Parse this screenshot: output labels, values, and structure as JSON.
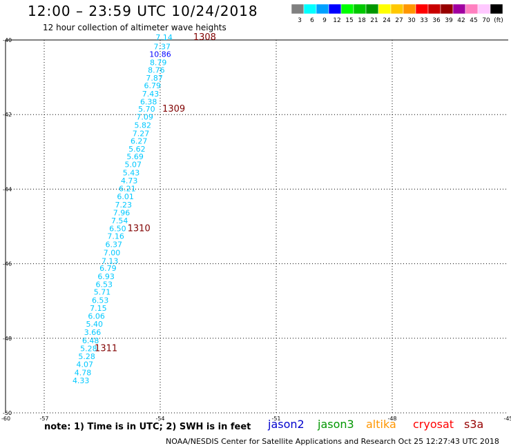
{
  "header": {
    "title": "12:00 – 23:59 UTC 10/24/2018",
    "subtitle": "12 hour collection of altimeter wave heights"
  },
  "colorbar": {
    "colors": [
      "#808080",
      "#00ffff",
      "#00a0ff",
      "#0000ff",
      "#00ff00",
      "#00c800",
      "#009600",
      "#ffff00",
      "#ffc800",
      "#ff9600",
      "#ff0000",
      "#c80000",
      "#960000",
      "#a000a0",
      "#ff80c0",
      "#ffc8ff",
      "#000000"
    ],
    "labels": [
      "3",
      "6",
      "9",
      "12",
      "15",
      "18",
      "21",
      "24",
      "27",
      "30",
      "33",
      "36",
      "39",
      "42",
      "45",
      "70",
      "(ft)"
    ]
  },
  "footer": {
    "note": "note:  1) Time is in UTC;  2) SWH is in feet",
    "missions": [
      {
        "name": "jason2",
        "color": "#0000cc"
      },
      {
        "name": "jason3",
        "color": "#009600"
      },
      {
        "name": "altika",
        "color": "#ff9600"
      },
      {
        "name": "cryosat",
        "color": "#ff0000"
      },
      {
        "name": "s3a",
        "color": "#960000"
      }
    ],
    "credit": "NOAA/NESDIS Center for Satellite Applications and Research     Oct 25 12:27:43 UTC 2018"
  },
  "chart_data": {
    "type": "scatter",
    "xlim": [
      -58,
      -45
    ],
    "ylim": [
      -50,
      -40
    ],
    "x_ticks": [
      -57,
      -54,
      -51,
      -48,
      -45
    ],
    "x_tick_labels": [
      "-57",
      "-54",
      "-51",
      "-48",
      "-45"
    ],
    "y_ticks": [
      -40,
      -42,
      -44,
      -46,
      -48,
      -50
    ],
    "y_tick_labels": [
      "-40",
      "-42",
      "-44",
      "-46",
      "-48",
      "-50"
    ],
    "corner_label": "-60",
    "grid": true,
    "wave_color_default": "#00c8ff",
    "wave_color_high": "#0000ff",
    "points": [
      {
        "lon": -53.9,
        "lat": -39.93,
        "swh": "7.14"
      },
      {
        "lon": -53.95,
        "lat": -40.18,
        "swh": "7.37"
      },
      {
        "lon": -54.0,
        "lat": -40.38,
        "swh": "10.86"
      },
      {
        "lon": -54.05,
        "lat": -40.6,
        "swh": "8.79"
      },
      {
        "lon": -54.1,
        "lat": -40.8,
        "swh": "8.76"
      },
      {
        "lon": -54.15,
        "lat": -41.02,
        "swh": "7.87"
      },
      {
        "lon": -54.2,
        "lat": -41.22,
        "swh": "6.79"
      },
      {
        "lon": -54.25,
        "lat": -41.44,
        "swh": "7.43"
      },
      {
        "lon": -54.3,
        "lat": -41.65,
        "swh": "6.38"
      },
      {
        "lon": -54.35,
        "lat": -41.85,
        "swh": "5.70"
      },
      {
        "lon": -54.4,
        "lat": -42.06,
        "swh": "7.09"
      },
      {
        "lon": -54.45,
        "lat": -42.28,
        "swh": "5.82"
      },
      {
        "lon": -54.5,
        "lat": -42.5,
        "swh": "7.27"
      },
      {
        "lon": -54.55,
        "lat": -42.71,
        "swh": "6.27"
      },
      {
        "lon": -54.6,
        "lat": -42.92,
        "swh": "5.62"
      },
      {
        "lon": -54.65,
        "lat": -43.12,
        "swh": "5.69"
      },
      {
        "lon": -54.7,
        "lat": -43.34,
        "swh": "5.07"
      },
      {
        "lon": -54.75,
        "lat": -43.56,
        "swh": "5.43"
      },
      {
        "lon": -54.8,
        "lat": -43.77,
        "swh": "4.73"
      },
      {
        "lon": -54.85,
        "lat": -43.98,
        "swh": "6.21"
      },
      {
        "lon": -54.9,
        "lat": -44.2,
        "swh": "6.01"
      },
      {
        "lon": -54.95,
        "lat": -44.42,
        "swh": "7.23"
      },
      {
        "lon": -55.0,
        "lat": -44.63,
        "swh": "7.96"
      },
      {
        "lon": -55.05,
        "lat": -44.84,
        "swh": "7.54"
      },
      {
        "lon": -55.1,
        "lat": -45.06,
        "swh": "6.50"
      },
      {
        "lon": -55.15,
        "lat": -45.26,
        "swh": "7.16"
      },
      {
        "lon": -55.2,
        "lat": -45.48,
        "swh": "6.37"
      },
      {
        "lon": -55.25,
        "lat": -45.7,
        "swh": "7.00"
      },
      {
        "lon": -55.3,
        "lat": -45.92,
        "swh": "7.13"
      },
      {
        "lon": -55.35,
        "lat": -46.12,
        "swh": "6.79"
      },
      {
        "lon": -55.4,
        "lat": -46.34,
        "swh": "6.93"
      },
      {
        "lon": -55.45,
        "lat": -46.55,
        "swh": "6.53"
      },
      {
        "lon": -55.5,
        "lat": -46.76,
        "swh": "5.71"
      },
      {
        "lon": -55.55,
        "lat": -46.98,
        "swh": "6.53"
      },
      {
        "lon": -55.6,
        "lat": -47.19,
        "swh": "7.15"
      },
      {
        "lon": -55.65,
        "lat": -47.4,
        "swh": "6.06"
      },
      {
        "lon": -55.7,
        "lat": -47.62,
        "swh": "5.40"
      },
      {
        "lon": -55.75,
        "lat": -47.84,
        "swh": "3.66"
      },
      {
        "lon": -55.8,
        "lat": -48.06,
        "swh": "6.48"
      },
      {
        "lon": -55.85,
        "lat": -48.27,
        "swh": "5.28"
      },
      {
        "lon": -55.9,
        "lat": -48.48,
        "swh": "5.28"
      },
      {
        "lon": -55.95,
        "lat": -48.7,
        "swh": "4.07"
      },
      {
        "lon": -56.0,
        "lat": -48.92,
        "swh": "4.78"
      },
      {
        "lon": -56.05,
        "lat": -49.13,
        "swh": "4.33"
      }
    ],
    "time_labels": [
      {
        "text": "1308",
        "lon": -52.85,
        "lat": -39.93
      },
      {
        "text": "1309",
        "lon": -53.65,
        "lat": -41.85
      },
      {
        "text": "1310",
        "lon": -54.55,
        "lat": -45.06
      },
      {
        "text": "1311",
        "lon": -55.4,
        "lat": -48.27
      }
    ],
    "time_label_color": "#800000"
  }
}
